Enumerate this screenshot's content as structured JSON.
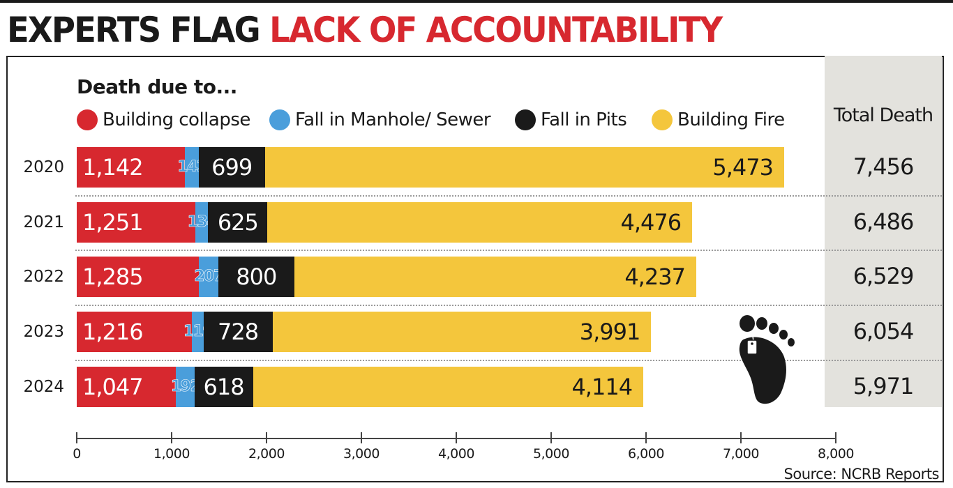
{
  "headline": {
    "part1": "EXPERTS FLAG",
    "part2": "LACK OF ACCOUNTABILITY"
  },
  "colors": {
    "building_collapse": "#d7282f",
    "manhole": "#4a9edb",
    "pits": "#1a1a1a",
    "fire": "#f4c63c",
    "total_panel": "#e3e2dd",
    "headline_red": "#d7282f"
  },
  "icon": "footprint-with-toe-tag-icon",
  "chart_data": {
    "type": "bar",
    "orientation": "horizontal",
    "stacked": true,
    "title": "Death due to...",
    "categories": [
      "2020",
      "2021",
      "2022",
      "2023",
      "2024"
    ],
    "series": [
      {
        "name": "Building collapse",
        "color": "#d7282f",
        "values": [
          1142,
          1251,
          1285,
          1216,
          1047
        ],
        "labels": [
          "1,142",
          "1,251",
          "1,285",
          "1,216",
          "1,047"
        ]
      },
      {
        "name": "Fall in Manhole/ Sewer",
        "color": "#4a9edb",
        "values": [
          142,
          134,
          207,
          119,
          192
        ],
        "labels": [
          "142",
          "134",
          "207",
          "119",
          "192"
        ]
      },
      {
        "name": "Fall in Pits",
        "color": "#1a1a1a",
        "values": [
          699,
          625,
          800,
          728,
          618
        ],
        "labels": [
          "699",
          "625",
          "800",
          "728",
          "618"
        ]
      },
      {
        "name": "Building Fire",
        "color": "#f4c63c",
        "values": [
          5473,
          4476,
          4237,
          3991,
          4114
        ],
        "labels": [
          "5,473",
          "4,476",
          "4,237",
          "3,991",
          "4,114"
        ]
      }
    ],
    "totals": {
      "heading": "Total Death",
      "values": [
        "7,456",
        "6,486",
        "6,529",
        "6,054",
        "5,971"
      ]
    },
    "xlim": [
      0,
      8000
    ],
    "xticks": [
      "0",
      "1,000",
      "2,000",
      "3,000",
      "4,000",
      "5,000",
      "6,000",
      "7,000",
      "8,000"
    ],
    "grid": false,
    "legend_position": "top",
    "source": "Source: NCRB Reports"
  }
}
